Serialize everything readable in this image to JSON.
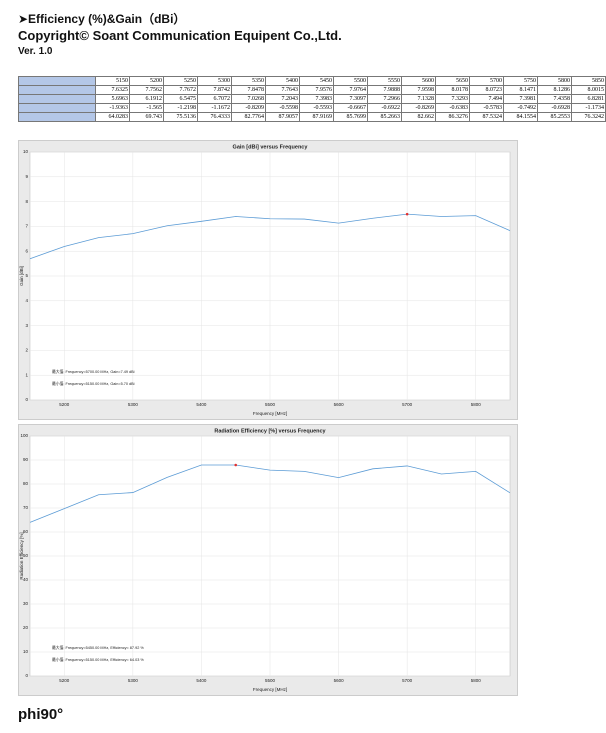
{
  "header": {
    "title": "➤Efficiency (%)&Gain（dBi）",
    "copyright": "Copyright© Soant Communication Equipent Co.,Ltd.",
    "version": "Ver. 1.0"
  },
  "table": {
    "rows": [
      [
        5150,
        5200,
        5250,
        5300,
        5350,
        5400,
        5450,
        5500,
        5550,
        5600,
        5650,
        5700,
        5750,
        5800,
        5850
      ],
      [
        7.6325,
        7.7562,
        7.7672,
        7.8742,
        7.8478,
        7.7643,
        7.9576,
        7.9764,
        7.9888,
        7.9598,
        8.0178,
        8.0723,
        8.1471,
        8.1286,
        8.0015
      ],
      [
        5.6963,
        6.1912,
        6.5475,
        6.7072,
        7.0268,
        7.2043,
        7.3983,
        7.3097,
        7.2966,
        7.1328,
        7.3293,
        7.494,
        7.3981,
        7.4358,
        6.8281
      ],
      [
        -1.9363,
        -1.565,
        -1.2198,
        -1.1672,
        -0.8209,
        -0.5598,
        -0.5593,
        -0.6667,
        -0.6922,
        -0.8269,
        -0.6383,
        -0.5783,
        -0.7492,
        -0.6928,
        -1.1734
      ],
      [
        64.0283,
        69.743,
        75.5136,
        76.4333,
        82.7764,
        87.9057,
        87.9169,
        85.7699,
        85.2663,
        82.662,
        86.3276,
        87.5324,
        84.1554,
        85.2553,
        76.3242
      ]
    ]
  },
  "chart_data": [
    {
      "type": "line",
      "title": "Gain [dBi] versus Frequency",
      "x_label": "Frequency [MHz]",
      "y_label": "Gain [dBi]",
      "x": [
        5150,
        5200,
        5250,
        5300,
        5350,
        5400,
        5450,
        5500,
        5550,
        5600,
        5650,
        5700,
        5750,
        5800,
        5850
      ],
      "series": [
        {
          "name": "Gain",
          "color": "#5b9bd5",
          "values": [
            5.6963,
            6.1912,
            6.5475,
            6.7072,
            7.0268,
            7.2043,
            7.3983,
            7.3097,
            7.2966,
            7.1328,
            7.3293,
            7.494,
            7.3981,
            7.4358,
            6.8281
          ]
        }
      ],
      "xlim": [
        5150,
        5850
      ],
      "xticks": [
        5200,
        5300,
        5400,
        5500,
        5600,
        5700,
        5800
      ],
      "ylim": [
        0,
        10
      ],
      "yticks": [
        0,
        1,
        2,
        3,
        4,
        5,
        6,
        7,
        8,
        9,
        10
      ],
      "grid": true,
      "annotations": [
        "最大值: Frequency=5700.00 MHz, Gain=7.49 dBi",
        "最小值: Frequency=5150.00 MHz, Gain=5.70 dBi"
      ]
    },
    {
      "type": "line",
      "title": "Radiation Efficiency [%] versus Frequency",
      "x_label": "Frequency [MHz]",
      "y_label": "Radiation Efficiency [%]",
      "x": [
        5150,
        5200,
        5250,
        5300,
        5350,
        5400,
        5450,
        5500,
        5550,
        5600,
        5650,
        5700,
        5750,
        5800,
        5850
      ],
      "series": [
        {
          "name": "Efficiency",
          "color": "#5b9bd5",
          "values": [
            64.0283,
            69.743,
            75.5136,
            76.4333,
            82.7764,
            87.9057,
            87.9169,
            85.7699,
            85.2663,
            82.662,
            86.3276,
            87.5324,
            84.1554,
            85.2553,
            76.3242
          ]
        }
      ],
      "xlim": [
        5150,
        5850
      ],
      "xticks": [
        5200,
        5300,
        5400,
        5500,
        5600,
        5700,
        5800
      ],
      "ylim": [
        0,
        100
      ],
      "yticks": [
        0,
        10,
        20,
        30,
        40,
        50,
        60,
        70,
        80,
        90,
        100
      ],
      "grid": true,
      "annotations": [
        "最大值: Frequency=5450.00 MHz, Efficiency= 87.92 %",
        "最小值: Frequency=5150.00 MHz, Efficiency= 64.03 %"
      ]
    }
  ],
  "footer": "phi90°"
}
